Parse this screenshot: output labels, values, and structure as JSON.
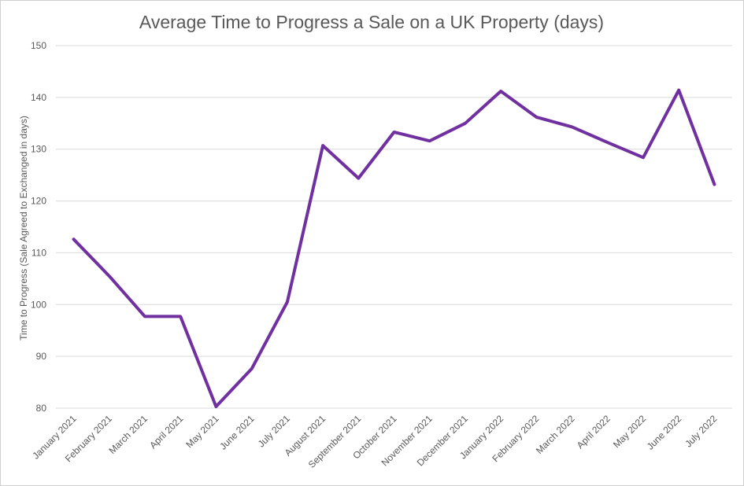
{
  "chart_data": {
    "type": "line",
    "title": "Average Time to Progress a Sale on a UK Property (days)",
    "xlabel": "",
    "ylabel": "Time to Progress (Sale Agreed to Exchanged in days)",
    "ylim": [
      80,
      150
    ],
    "yticks": [
      80,
      90,
      100,
      110,
      120,
      130,
      140,
      150
    ],
    "grid": true,
    "legend": "none",
    "categories": [
      "January 2021",
      "February 2021",
      "March 2021",
      "April 2021",
      "May 2021",
      "June 2021",
      "July 2021",
      "August 2021",
      "September 2021",
      "October 2021",
      "November 2021",
      "December 2021",
      "January 2022",
      "February 2022",
      "March 2022",
      "April 2022",
      "May 2022",
      "June 2022",
      "July 2022"
    ],
    "series": [
      {
        "color": "#7030a0",
        "values": [
          112.6,
          105.5,
          97.7,
          97.7,
          80.3,
          87.6,
          100.5,
          130.7,
          124.4,
          133.3,
          131.6,
          135.0,
          141.2,
          136.2,
          134.3,
          131.3,
          128.4,
          141.4,
          123.2
        ]
      }
    ]
  }
}
